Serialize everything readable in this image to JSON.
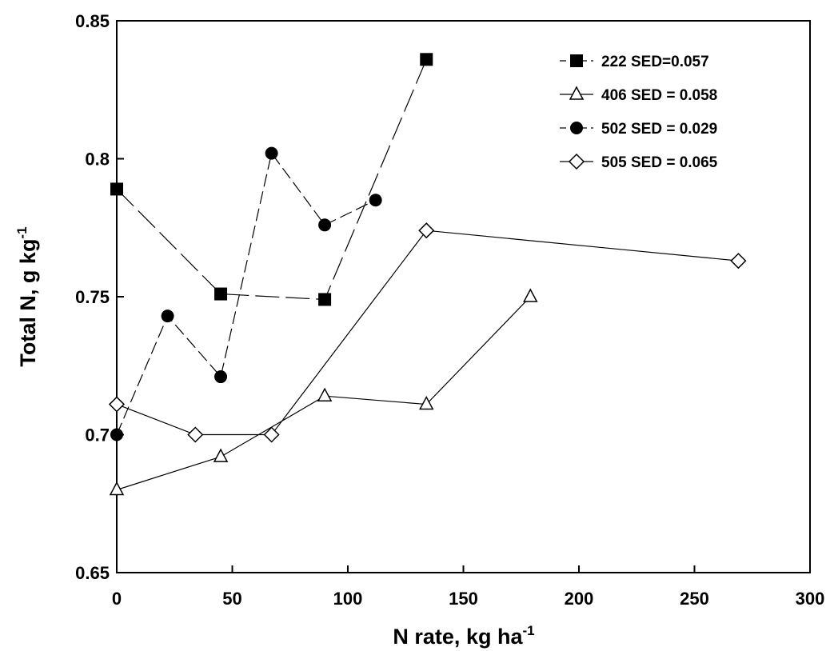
{
  "chart_data": {
    "type": "line",
    "xlabel": "N rate, kg ha",
    "xlabel_sup": "-1",
    "ylabel": "Total N, g kg",
    "ylabel_sup": "-1",
    "xlim": [
      0,
      300
    ],
    "ylim": [
      0.65,
      0.85
    ],
    "xticks": [
      0,
      50,
      100,
      150,
      200,
      250,
      300
    ],
    "xtick_labels": [
      "0",
      "50",
      "100",
      "150",
      "200",
      "250",
      "300"
    ],
    "yticks": [
      0.65,
      0.7,
      0.75,
      0.8,
      0.85
    ],
    "ytick_labels": [
      "0.65",
      "0.7",
      "0.75",
      "0.8",
      "0.85"
    ],
    "grid": false,
    "legend_position": "top-right",
    "series": [
      {
        "name": "222 SED=0.057",
        "marker": "filled-square",
        "line_style": "long-dash",
        "x": [
          0,
          45,
          90,
          134
        ],
        "y": [
          0.789,
          0.751,
          0.749,
          0.836
        ]
      },
      {
        "name": "406 SED = 0.058",
        "marker": "open-triangle",
        "line_style": "solid",
        "x": [
          0,
          45,
          90,
          134,
          179
        ],
        "y": [
          0.68,
          0.692,
          0.714,
          0.711,
          0.75
        ]
      },
      {
        "name": "502 SED = 0.029",
        "marker": "filled-circle",
        "line_style": "medium-dash",
        "x": [
          0,
          22,
          45,
          67,
          90,
          112
        ],
        "y": [
          0.7,
          0.743,
          0.721,
          0.802,
          0.776,
          0.785
        ]
      },
      {
        "name": "505 SED = 0.065",
        "marker": "open-diamond",
        "line_style": "solid",
        "x": [
          0,
          34,
          67,
          134,
          269
        ],
        "y": [
          0.711,
          0.7,
          0.7,
          0.774,
          0.763
        ]
      }
    ]
  }
}
